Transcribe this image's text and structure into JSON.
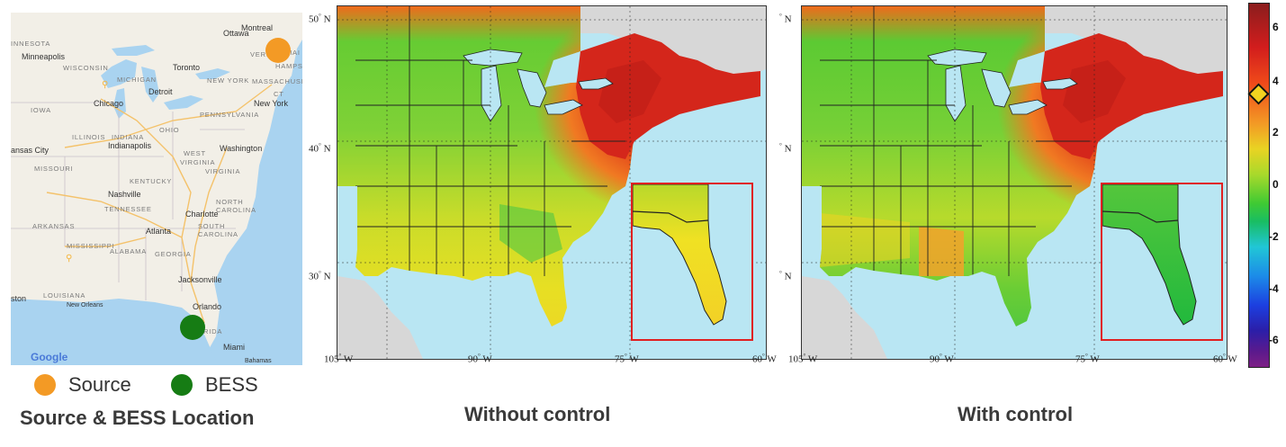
{
  "reference_map": {
    "cities": [
      {
        "name": "Minneapolis",
        "key": "minneapolis"
      },
      {
        "name": "Ottawa",
        "key": "ottawa"
      },
      {
        "name": "Montreal",
        "key": "montreal"
      },
      {
        "name": "Toronto",
        "key": "toronto"
      },
      {
        "name": "Detroit",
        "key": "detroit"
      },
      {
        "name": "Chicago",
        "key": "chicago"
      },
      {
        "name": "New York",
        "key": "newyork"
      },
      {
        "name": "Indianapolis",
        "key": "indianapolis"
      },
      {
        "name": "Washington",
        "key": "washington"
      },
      {
        "name": "Nashville",
        "key": "nashville"
      },
      {
        "name": "Charlotte",
        "key": "charlotte"
      },
      {
        "name": "Atlanta",
        "key": "atlanta"
      },
      {
        "name": "Jacksonville",
        "key": "jacksonville"
      },
      {
        "name": "Orlando",
        "key": "orlando"
      },
      {
        "name": "Miami",
        "key": "miami"
      },
      {
        "name": "New Orleans",
        "key": "neworleans"
      },
      {
        "name": "Bahamas",
        "key": "bahamas"
      }
    ],
    "states": [
      {
        "name": "INNESOTA",
        "key": "mn"
      },
      {
        "name": "WISCONSIN",
        "key": "wi"
      },
      {
        "name": "MICHIGAN",
        "key": "mi"
      },
      {
        "name": "VERMO",
        "key": "vt"
      },
      {
        "name": "HAMPSHIRE",
        "key": "nh"
      },
      {
        "name": "MAI",
        "key": "me"
      },
      {
        "name": "MASSACHUSE",
        "key": "ma"
      },
      {
        "name": "IOWA",
        "key": "ia"
      },
      {
        "name": "NEW YORK",
        "key": "ny"
      },
      {
        "name": "CT",
        "key": "ct"
      },
      {
        "name": "PENNSYLVANIA",
        "key": "pa"
      },
      {
        "name": "ILLINOIS",
        "key": "il"
      },
      {
        "name": "INDIANA",
        "key": "in"
      },
      {
        "name": "OHIO",
        "key": "oh"
      },
      {
        "name": "WEST",
        "key": "wv1"
      },
      {
        "name": "VIRGINIA",
        "key": "wv2"
      },
      {
        "name": "VIRGINIA",
        "key": "va"
      },
      {
        "name": "ansas City",
        "key": "kc"
      },
      {
        "name": "MISSOURI",
        "key": "mo"
      },
      {
        "name": "KENTUCKY",
        "key": "ky"
      },
      {
        "name": "NORTH",
        "key": "nc1"
      },
      {
        "name": "CAROLINA",
        "key": "nc2"
      },
      {
        "name": "TENNESSEE",
        "key": "tn"
      },
      {
        "name": "ARKANSAS",
        "key": "ar"
      },
      {
        "name": "SOUTH",
        "key": "sc1"
      },
      {
        "name": "CAROLINA",
        "key": "sc2"
      },
      {
        "name": "MISSISSIPPI",
        "key": "ms"
      },
      {
        "name": "ALABAMA",
        "key": "al"
      },
      {
        "name": "GEORGIA",
        "key": "ga"
      },
      {
        "name": "LOUISIANA",
        "key": "la"
      },
      {
        "name": "ston",
        "key": "hou"
      },
      {
        "name": "RIDA",
        "key": "fl"
      }
    ],
    "google_logo": "Google",
    "markers": {
      "source_color": "#f39a25",
      "bess_color": "#167c14"
    }
  },
  "legend": {
    "source_label": "Source",
    "bess_label": "BESS"
  },
  "captions": {
    "left": "Source & BESS Location",
    "middle": "Without control",
    "right": "With control"
  },
  "panels": {
    "lon_labels": [
      "105",
      "90",
      "75",
      "60"
    ],
    "lon_suffix": " W",
    "lat_labels": [
      "50",
      "40",
      "30"
    ],
    "lat_suffix": " N",
    "truncated_lat_prefix": "",
    "inset_border_color": "#e02020"
  },
  "colorbar": {
    "ticks": [
      "6",
      "4",
      "2",
      "0",
      "-2",
      "-4",
      "-6"
    ],
    "colors": [
      "#8b1d1d",
      "#d21d1d",
      "#f04a1a",
      "#f39a25",
      "#e9d323",
      "#a9d92b",
      "#3fca33",
      "#19bd63",
      "#21c6d6",
      "#1c8be8",
      "#1c3fe0",
      "#2b1ea8",
      "#7d1f86"
    ],
    "marker_value": 3.5,
    "range": [
      -7,
      7
    ]
  }
}
